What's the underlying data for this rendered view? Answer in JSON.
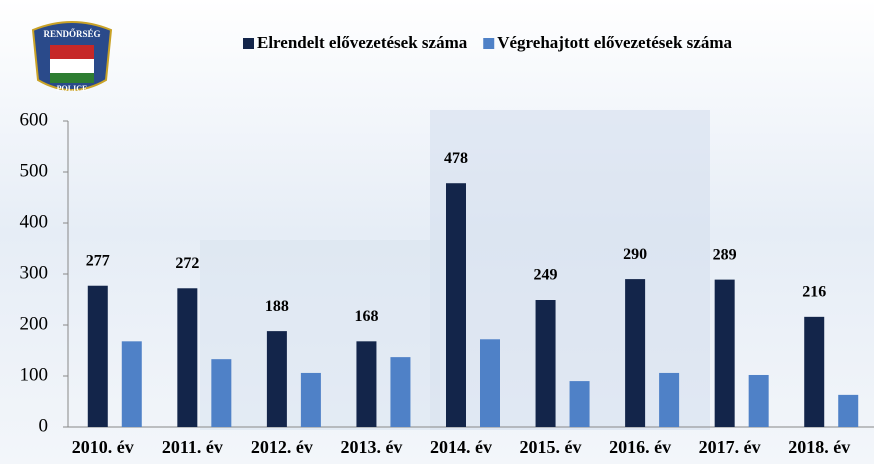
{
  "logo": {
    "top": "RENDŐRSÉG",
    "bottom": "POLICE"
  },
  "chart_data": {
    "type": "bar",
    "categories": [
      "2010. év",
      "2011. év",
      "2012. év",
      "2013. év",
      "2014. év",
      "2015. év",
      "2016. év",
      "2017. év",
      "2018. év"
    ],
    "series": [
      {
        "name": "Elrendelt elővezetések száma",
        "color": "#13254a",
        "values": [
          277,
          272,
          188,
          168,
          478,
          249,
          290,
          289,
          216
        ],
        "labels": true
      },
      {
        "name": "Végrehajtott elővezetések száma",
        "color": "#4f81c7",
        "values": [
          168,
          133,
          106,
          137,
          172,
          90,
          106,
          102,
          63
        ],
        "labels": false
      }
    ],
    "ylim": [
      0,
      600
    ],
    "yticks": [
      0,
      100,
      200,
      300,
      400,
      500,
      600
    ]
  }
}
